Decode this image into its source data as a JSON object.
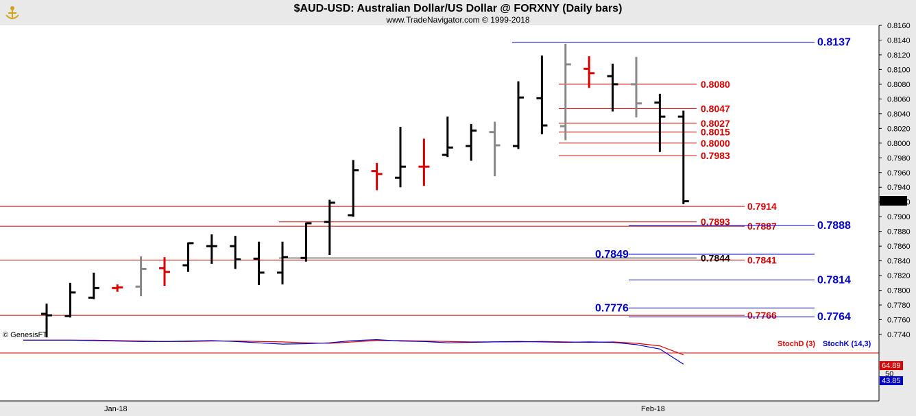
{
  "header": {
    "title": "$AUD-USD:  Australian Dollar/US Dollar @ FORXNY  (Daily bars)",
    "subtitle": "www.TradeNavigator.com © 1999-2018",
    "logo_icon": "genesis-anchor-logo-icon"
  },
  "watermark": "© GenesisFT",
  "colors": {
    "up_bar": "#000000",
    "down_bar": "#000000",
    "neutral_bar": "#888888",
    "red_bar": "#dd0000",
    "red_level": "#d40000",
    "blue_level": "#0000cc",
    "black_level": "#000000",
    "stochD": "#dd0000",
    "stochK": "#0000cc"
  },
  "chart_data": {
    "type": "ohlc",
    "title": "$AUD-USD:  Australian Dollar/US Dollar @ FORXNY  (Daily bars)",
    "x_labels": [
      "Jan-18",
      "Feb-18"
    ],
    "ylim": [
      0.773,
      0.816
    ],
    "y_ticks": [
      "0.8160",
      "0.8140",
      "0.8120",
      "0.8100",
      "0.8080",
      "0.8060",
      "0.8040",
      "0.8020",
      "0.8000",
      "0.7980",
      "0.7960",
      "0.7940",
      "0.7920",
      "0.7900",
      "0.7880",
      "0.7860",
      "0.7840",
      "0.7820",
      "0.7800",
      "0.7780",
      "0.7760",
      "0.7740"
    ],
    "last_price": "0.7921",
    "bars": [
      {
        "o": 0.7768,
        "h": 0.7782,
        "l": 0.7736,
        "c": 0.7766,
        "color": "black"
      },
      {
        "o": 0.7765,
        "h": 0.781,
        "l": 0.7763,
        "c": 0.7797,
        "color": "black"
      },
      {
        "o": 0.779,
        "h": 0.7824,
        "l": 0.7788,
        "c": 0.7803,
        "color": "black"
      },
      {
        "o": 0.7803,
        "h": 0.7808,
        "l": 0.7798,
        "c": 0.7804,
        "color": "red"
      },
      {
        "o": 0.7805,
        "h": 0.7846,
        "l": 0.7792,
        "c": 0.7829,
        "color": "gray"
      },
      {
        "o": 0.783,
        "h": 0.7845,
        "l": 0.7806,
        "c": 0.7825,
        "color": "red"
      },
      {
        "o": 0.7834,
        "h": 0.7865,
        "l": 0.7825,
        "c": 0.7864,
        "color": "black"
      },
      {
        "o": 0.786,
        "h": 0.7876,
        "l": 0.7836,
        "c": 0.786,
        "color": "black"
      },
      {
        "o": 0.786,
        "h": 0.7874,
        "l": 0.7829,
        "c": 0.7842,
        "color": "black"
      },
      {
        "o": 0.7843,
        "h": 0.7866,
        "l": 0.7807,
        "c": 0.7824,
        "color": "black"
      },
      {
        "o": 0.7824,
        "h": 0.7866,
        "l": 0.7808,
        "c": 0.7845,
        "color": "black"
      },
      {
        "o": 0.7844,
        "h": 0.7892,
        "l": 0.7839,
        "c": 0.7891,
        "color": "black"
      },
      {
        "o": 0.7893,
        "h": 0.7923,
        "l": 0.7848,
        "c": 0.7919,
        "color": "black"
      },
      {
        "o": 0.7902,
        "h": 0.7977,
        "l": 0.79,
        "c": 0.7963,
        "color": "black"
      },
      {
        "o": 0.7962,
        "h": 0.7973,
        "l": 0.7936,
        "c": 0.7958,
        "color": "red"
      },
      {
        "o": 0.7953,
        "h": 0.8022,
        "l": 0.794,
        "c": 0.7968,
        "color": "black"
      },
      {
        "o": 0.7968,
        "h": 0.8006,
        "l": 0.7942,
        "c": 0.7968,
        "color": "red"
      },
      {
        "o": 0.7984,
        "h": 0.8036,
        "l": 0.7981,
        "c": 0.7994,
        "color": "black"
      },
      {
        "o": 0.7996,
        "h": 0.8026,
        "l": 0.7976,
        "c": 0.8017,
        "color": "black"
      },
      {
        "o": 0.8015,
        "h": 0.8029,
        "l": 0.7955,
        "c": 0.7997,
        "color": "gray"
      },
      {
        "o": 0.7996,
        "h": 0.8084,
        "l": 0.7992,
        "c": 0.8062,
        "color": "black"
      },
      {
        "o": 0.8061,
        "h": 0.8119,
        "l": 0.8012,
        "c": 0.8024,
        "color": "black"
      },
      {
        "o": 0.8023,
        "h": 0.8135,
        "l": 0.8004,
        "c": 0.8107,
        "color": "gray"
      },
      {
        "o": 0.8101,
        "h": 0.8118,
        "l": 0.8075,
        "c": 0.8095,
        "color": "red"
      },
      {
        "o": 0.8091,
        "h": 0.8108,
        "l": 0.8043,
        "c": 0.808,
        "color": "black"
      },
      {
        "o": 0.808,
        "h": 0.8117,
        "l": 0.8035,
        "c": 0.8054,
        "color": "gray"
      },
      {
        "o": 0.8055,
        "h": 0.8067,
        "l": 0.7988,
        "c": 0.8036,
        "color": "black"
      },
      {
        "o": 0.8036,
        "h": 0.8044,
        "l": 0.7917,
        "c": 0.7921,
        "color": "black"
      }
    ],
    "levels": [
      {
        "label": "0.8137",
        "value": 0.8137,
        "color": "blue",
        "size": "big"
      },
      {
        "label": "0.8080",
        "value": 0.808,
        "color": "red",
        "size": "normal"
      },
      {
        "label": "0.8047",
        "value": 0.8047,
        "color": "red",
        "size": "normal"
      },
      {
        "label": "0.8027",
        "value": 0.8027,
        "color": "red",
        "size": "normal"
      },
      {
        "label": "0.8015",
        "value": 0.8015,
        "color": "red",
        "size": "normal"
      },
      {
        "label": "0.8000",
        "value": 0.8,
        "color": "red",
        "size": "normal"
      },
      {
        "label": "0.7983",
        "value": 0.7983,
        "color": "red",
        "size": "normal"
      },
      {
        "label": "0.7914",
        "value": 0.7914,
        "color": "red",
        "size": "normal"
      },
      {
        "label": "0.7893",
        "value": 0.7893,
        "color": "red",
        "size": "normal"
      },
      {
        "label": "0.7887",
        "value": 0.7887,
        "color": "red",
        "size": "normal"
      },
      {
        "label": "0.7888",
        "value": 0.7888,
        "color": "blue",
        "size": "big"
      },
      {
        "label": "0.7849",
        "value": 0.7849,
        "color": "blue",
        "size": "big"
      },
      {
        "label": "0.7844",
        "value": 0.7844,
        "color": "black",
        "size": "normal"
      },
      {
        "label": "0.7841",
        "value": 0.7841,
        "color": "red",
        "size": "normal"
      },
      {
        "label": "0.7814",
        "value": 0.7814,
        "color": "blue",
        "size": "big"
      },
      {
        "label": "0.7776",
        "value": 0.7776,
        "color": "blue",
        "size": "big"
      },
      {
        "label": "0.7766",
        "value": 0.7766,
        "color": "red",
        "size": "normal"
      },
      {
        "label": "0.7764",
        "value": 0.7764,
        "color": "blue",
        "size": "big"
      }
    ],
    "stochastic": {
      "stochD_label": "StochD (3)",
      "stochK_label": "StochK (14,3)",
      "stochD_value": "64.89",
      "stochK_value": "43.85",
      "mid_tick": "50",
      "stochD": [
        98,
        98,
        98,
        97,
        96,
        95,
        95,
        96,
        96,
        95,
        94,
        92,
        91,
        94,
        97,
        97,
        96,
        95,
        94,
        94,
        94,
        95,
        94,
        93,
        94,
        91,
        85,
        65
      ],
      "stochK": [
        98,
        98,
        97,
        96,
        95,
        95,
        96,
        97,
        95,
        92,
        89,
        90,
        92,
        97,
        99,
        96,
        95,
        92,
        93,
        94,
        95,
        94,
        93,
        94,
        93,
        88,
        78,
        44
      ]
    }
  }
}
